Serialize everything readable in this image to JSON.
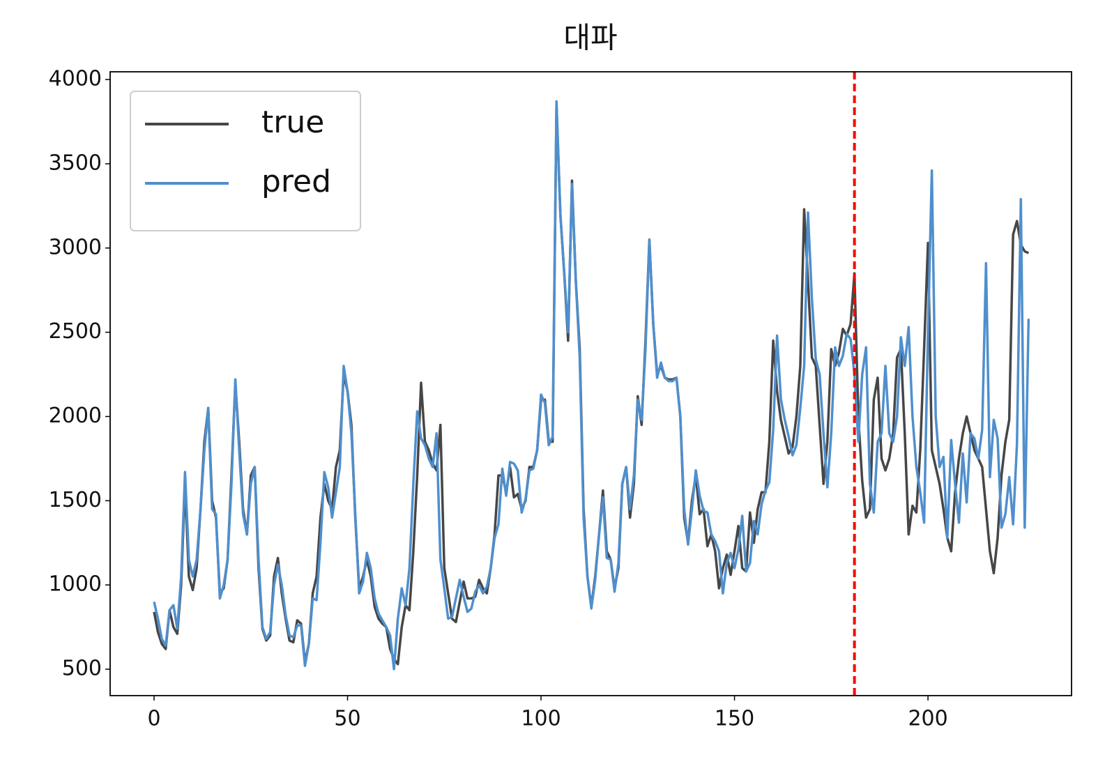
{
  "chart_data": {
    "type": "line",
    "title": "대파",
    "x": [
      0,
      1,
      2,
      3,
      4,
      5,
      6,
      7,
      8,
      9,
      10,
      11,
      12,
      13,
      14,
      15,
      16,
      17,
      18,
      19,
      20,
      21,
      22,
      23,
      24,
      25,
      26,
      27,
      28,
      29,
      30,
      31,
      32,
      33,
      34,
      35,
      36,
      37,
      38,
      39,
      40,
      41,
      42,
      43,
      44,
      45,
      46,
      47,
      48,
      49,
      50,
      51,
      52,
      53,
      54,
      55,
      56,
      57,
      58,
      59,
      60,
      61,
      62,
      63,
      64,
      65,
      66,
      67,
      68,
      69,
      70,
      71,
      72,
      73,
      74,
      75,
      76,
      77,
      78,
      79,
      80,
      81,
      82,
      83,
      84,
      85,
      86,
      87,
      88,
      89,
      90,
      91,
      92,
      93,
      94,
      95,
      96,
      97,
      98,
      99,
      100,
      101,
      102,
      103,
      104,
      105,
      106,
      107,
      108,
      109,
      110,
      111,
      112,
      113,
      114,
      115,
      116,
      117,
      118,
      119,
      120,
      121,
      122,
      123,
      124,
      125,
      126,
      127,
      128,
      129,
      130,
      131,
      132,
      133,
      134,
      135,
      136,
      137,
      138,
      139,
      140,
      141,
      142,
      143,
      144,
      145,
      146,
      147,
      148,
      149,
      150,
      151,
      152,
      153,
      154,
      155,
      156,
      157,
      158,
      159,
      160,
      161,
      162,
      163,
      164,
      165,
      166,
      167,
      168,
      169,
      170,
      171,
      172,
      173,
      174,
      175,
      176,
      177,
      178,
      179,
      180,
      181,
      182,
      183,
      184,
      185,
      186,
      187,
      188,
      189,
      190,
      191,
      192,
      193,
      194,
      195,
      196,
      197,
      198,
      199,
      200,
      201,
      202,
      203,
      204,
      205,
      206,
      207,
      208,
      209,
      210,
      211,
      212,
      213,
      214,
      215,
      216,
      217,
      218,
      219,
      220,
      221,
      222,
      223,
      224,
      225,
      226
    ],
    "series": [
      {
        "name": "true",
        "color": "#464646",
        "values": [
          840,
          720,
          650,
          620,
          850,
          750,
          710,
          1000,
          1600,
          1050,
          970,
          1100,
          1450,
          1850,
          2050,
          1500,
          1400,
          950,
          980,
          1150,
          1650,
          2200,
          1850,
          1450,
          1300,
          1650,
          1700,
          1100,
          740,
          670,
          700,
          1050,
          1160,
          950,
          800,
          670,
          660,
          790,
          770,
          540,
          650,
          950,
          1050,
          1400,
          1600,
          1500,
          1450,
          1700,
          1800,
          2250,
          2150,
          1950,
          1400,
          980,
          1050,
          1150,
          1050,
          870,
          800,
          770,
          750,
          620,
          560,
          530,
          750,
          880,
          850,
          1200,
          1650,
          2200,
          1850,
          1800,
          1720,
          1680,
          1950,
          1100,
          950,
          800,
          780,
          900,
          1020,
          920,
          920,
          930,
          1030,
          980,
          950,
          1100,
          1300,
          1650,
          1650,
          1550,
          1700,
          1520,
          1540,
          1450,
          1500,
          1700,
          1700,
          1800,
          2100,
          2100,
          1850,
          1850,
          3850,
          3200,
          2850,
          2450,
          3400,
          2800,
          2400,
          1450,
          1050,
          870,
          1050,
          1300,
          1560,
          1200,
          1150,
          980,
          1100,
          1600,
          1700,
          1400,
          1600,
          2120,
          1950,
          2450,
          3050,
          2550,
          2250,
          2300,
          2230,
          2220,
          2220,
          2230,
          2000,
          1400,
          1250,
          1500,
          1650,
          1420,
          1450,
          1230,
          1300,
          1200,
          980,
          1100,
          1180,
          1060,
          1200,
          1350,
          1100,
          1080,
          1430,
          1250,
          1450,
          1550,
          1550,
          1850,
          2450,
          2150,
          1980,
          1880,
          1780,
          1820,
          2000,
          2300,
          3230,
          2800,
          2350,
          2300,
          1950,
          1600,
          1850,
          2400,
          2300,
          2380,
          2520,
          2480,
          2550,
          2850,
          2000,
          1620,
          1400,
          1450,
          2100,
          2230,
          1750,
          1680,
          1750,
          1900,
          2350,
          2400,
          1900,
          1300,
          1470,
          1430,
          1800,
          2400,
          3030,
          1800,
          1700,
          1600,
          1450,
          1280,
          1200,
          1550,
          1750,
          1900,
          2000,
          1900,
          1800,
          1750,
          1700,
          1450,
          1200,
          1070,
          1280,
          1650,
          1850,
          1980,
          3080,
          3160,
          3020,
          2980,
          2970
        ]
      },
      {
        "name": "pred",
        "color": "#4f8fcd",
        "values": [
          900,
          800,
          680,
          640,
          850,
          880,
          740,
          1050,
          1670,
          1150,
          1050,
          1150,
          1450,
          1800,
          2050,
          1450,
          1420,
          920,
          1000,
          1150,
          1600,
          2220,
          1800,
          1420,
          1300,
          1600,
          1700,
          1150,
          750,
          680,
          720,
          1000,
          1120,
          1000,
          820,
          700,
          690,
          760,
          760,
          520,
          650,
          920,
          910,
          1250,
          1670,
          1580,
          1400,
          1550,
          1700,
          2300,
          2150,
          1900,
          1420,
          950,
          1020,
          1190,
          1100,
          920,
          830,
          790,
          750,
          700,
          500,
          800,
          980,
          880,
          1100,
          1600,
          2030,
          1870,
          1830,
          1750,
          1700,
          1900,
          1150,
          980,
          800,
          810,
          920,
          1030,
          930,
          840,
          860,
          960,
          1000,
          950,
          990,
          1100,
          1280,
          1360,
          1690,
          1530,
          1730,
          1720,
          1680,
          1430,
          1510,
          1680,
          1690,
          1800,
          2130,
          2080,
          1830,
          1880,
          3870,
          3200,
          2850,
          2500,
          3380,
          2800,
          2350,
          1400,
          1050,
          860,
          1030,
          1300,
          1520,
          1160,
          1150,
          960,
          1130,
          1600,
          1700,
          1450,
          1650,
          2100,
          1980,
          2400,
          3050,
          2550,
          2230,
          2320,
          2230,
          2210,
          2210,
          2230,
          2000,
          1450,
          1240,
          1450,
          1680,
          1530,
          1440,
          1430,
          1300,
          1260,
          1200,
          950,
          1130,
          1190,
          1100,
          1210,
          1410,
          1080,
          1130,
          1380,
          1300,
          1480,
          1560,
          1610,
          1920,
          2480,
          2100,
          1980,
          1880,
          1770,
          1830,
          2050,
          2300,
          3210,
          2700,
          2340,
          2250,
          1900,
          1580,
          1900,
          2410,
          2300,
          2360,
          2490,
          2460,
          2250,
          1850,
          2250,
          2410,
          1600,
          1430,
          1850,
          1900,
          2300,
          1900,
          1850,
          2000,
          2470,
          2300,
          2530,
          2000,
          1700,
          1550,
          1370,
          2500,
          3460,
          2000,
          1700,
          1760,
          1280,
          1860,
          1600,
          1370,
          1780,
          1490,
          1900,
          1870,
          1750,
          1920,
          2910,
          1640,
          1980,
          1870,
          1340,
          1420,
          1640,
          1360,
          1840,
          3290,
          1340,
          2580
        ]
      }
    ],
    "vline": {
      "x": 181,
      "color": "#ff0000"
    },
    "xlim": [
      -11.35,
      237.1
    ],
    "ylim": [
      343,
      4046
    ],
    "xticks": [
      0,
      50,
      100,
      150,
      200
    ],
    "yticks": [
      500,
      1000,
      1500,
      2000,
      2500,
      3000,
      3500,
      4000
    ],
    "legend": "upper left"
  }
}
